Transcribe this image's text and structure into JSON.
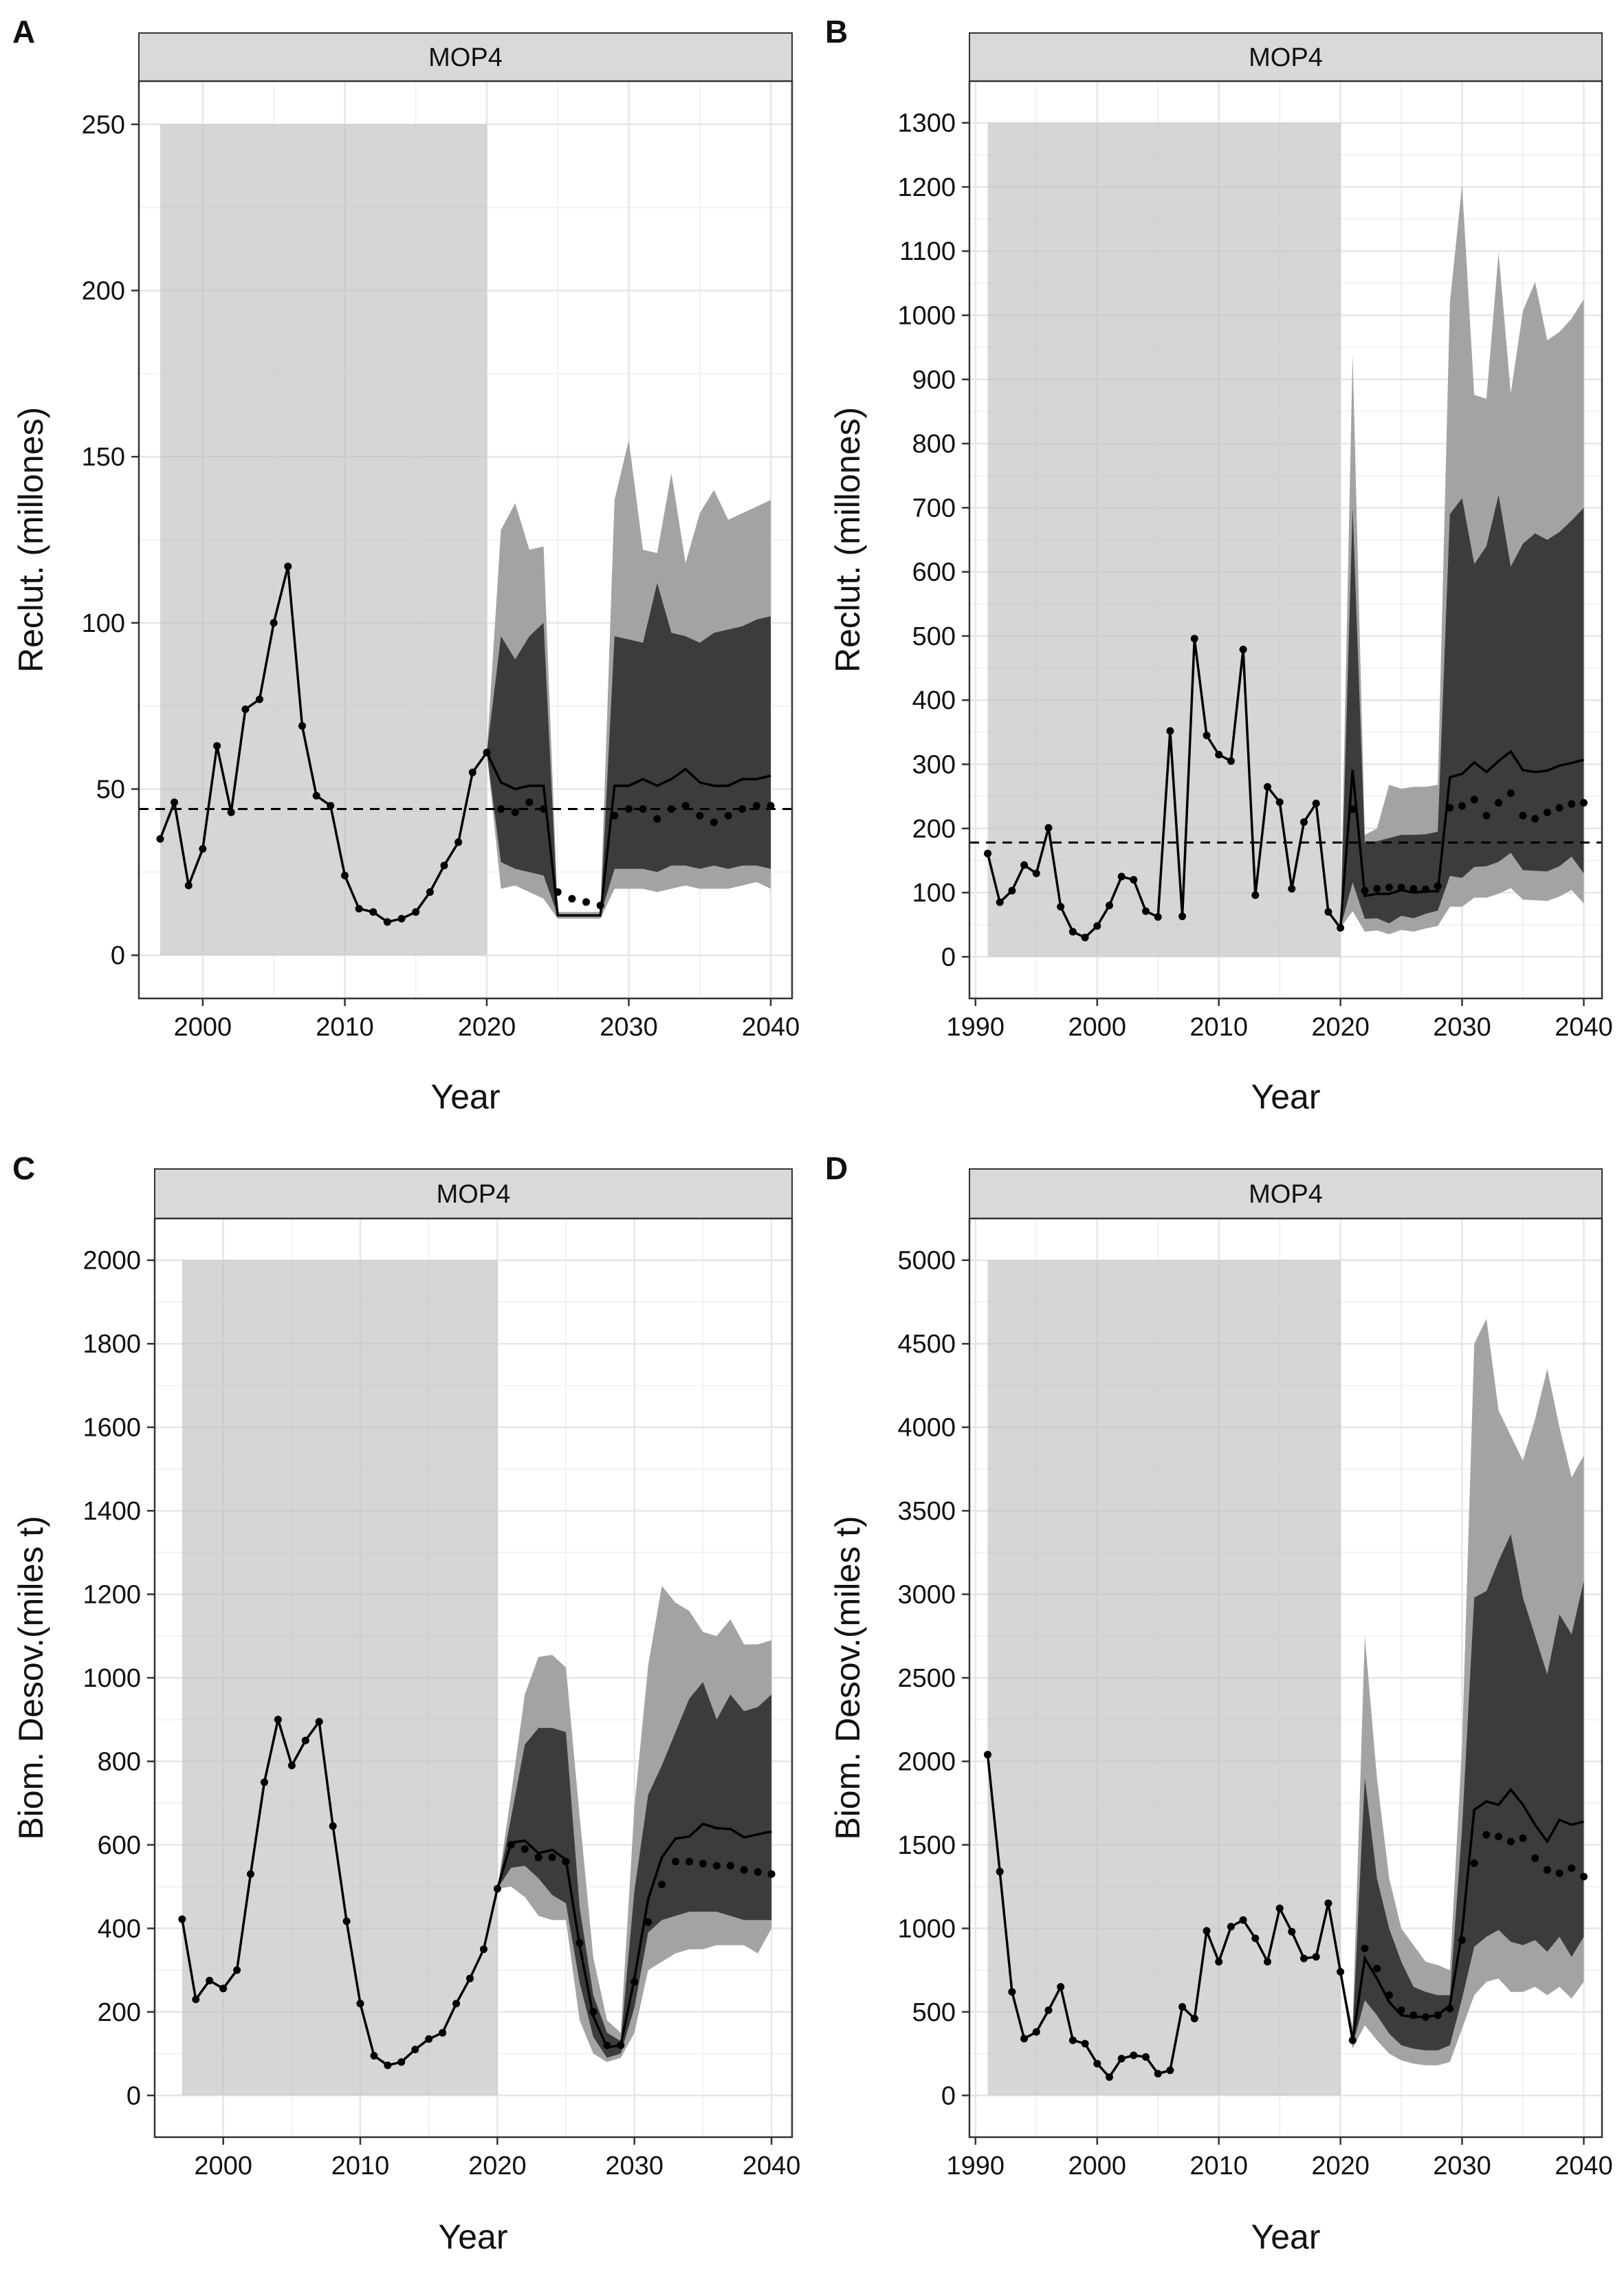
{
  "chart_data": [
    {
      "panel_letter": "A",
      "strip": "MOP4",
      "type": "line",
      "xlabel": "Year",
      "ylabel": "Reclut. (millones)",
      "xlim": [
        1995.5,
        2041.5
      ],
      "ylim": [
        -13,
        263
      ],
      "xticks": [
        2000,
        2010,
        2020,
        2030,
        2040
      ],
      "yticks": [
        0,
        50,
        100,
        150,
        200,
        250
      ],
      "hist_region": [
        1997,
        2020
      ],
      "hist_region_ymax": 250,
      "reference_line": 44,
      "observed": {
        "x": [
          1997,
          1998,
          1999,
          2000,
          2001,
          2002,
          2003,
          2004,
          2005,
          2006,
          2007,
          2008,
          2009,
          2010,
          2011,
          2012,
          2013,
          2014,
          2015,
          2016,
          2017,
          2018,
          2019,
          2020
        ],
        "y": [
          35,
          46,
          21,
          32,
          63,
          43,
          74,
          77,
          100,
          117,
          69,
          48,
          45,
          24,
          14,
          13,
          10,
          11,
          13,
          19,
          27,
          34,
          55,
          61
        ]
      },
      "proj_x": [
        2020,
        2021,
        2022,
        2023,
        2024,
        2025,
        2026,
        2027,
        2028,
        2029,
        2030,
        2031,
        2032,
        2033,
        2034,
        2035,
        2036,
        2037,
        2038,
        2039,
        2040
      ],
      "proj_median": [
        61,
        52,
        50,
        51,
        51,
        12,
        12,
        12,
        12,
        51,
        51,
        53,
        51,
        53,
        56,
        52,
        51,
        51,
        53,
        53,
        54
      ],
      "proj_mean": [
        61,
        44,
        43,
        46,
        44,
        19,
        17,
        16,
        15,
        42,
        44,
        44,
        41,
        44,
        45,
        42,
        40,
        42,
        44,
        45,
        45
      ],
      "band_outer": {
        "lo": [
          61,
          20,
          21,
          19,
          17,
          11,
          11,
          11,
          11,
          20,
          20,
          20,
          19,
          20,
          21,
          20,
          20,
          20,
          21,
          22,
          20
        ],
        "hi": [
          61,
          128,
          136,
          122,
          123,
          13,
          13,
          13,
          13,
          137,
          155,
          122,
          121,
          145,
          118,
          133,
          140,
          131,
          133,
          135,
          137
        ]
      },
      "band_inner": {
        "lo": [
          61,
          28,
          26,
          25,
          24,
          12,
          12,
          12,
          12,
          26,
          26,
          26,
          25,
          27,
          27,
          26,
          27,
          26,
          27,
          27,
          26
        ],
        "hi": [
          61,
          96,
          89,
          96,
          100,
          12,
          12,
          12,
          12,
          96,
          95,
          94,
          112,
          97,
          96,
          94,
          97,
          98,
          99,
          101,
          102
        ]
      }
    },
    {
      "panel_letter": "B",
      "strip": "MOP4",
      "type": "line",
      "xlabel": "Year",
      "ylabel": "Reclut. (millones)",
      "xlim": [
        1989.5,
        2041.5
      ],
      "ylim": [
        -65,
        1365
      ],
      "xticks": [
        1990,
        2000,
        2010,
        2020,
        2030,
        2040
      ],
      "yticks": [
        0,
        100,
        200,
        300,
        400,
        500,
        600,
        700,
        800,
        900,
        1000,
        1100,
        1200,
        1300
      ],
      "hist_region": [
        1991,
        2020
      ],
      "hist_region_ymax": 1300,
      "reference_line": 178,
      "observed": {
        "x": [
          1991,
          1992,
          1993,
          1994,
          1995,
          1996,
          1997,
          1998,
          1999,
          2000,
          2001,
          2002,
          2003,
          2004,
          2005,
          2006,
          2007,
          2008,
          2009,
          2010,
          2011,
          2012,
          2013,
          2014,
          2015,
          2016,
          2017,
          2018,
          2019,
          2020
        ],
        "y": [
          161,
          85,
          103,
          143,
          130,
          201,
          78,
          39,
          30,
          48,
          80,
          125,
          120,
          71,
          62,
          352,
          63,
          496,
          345,
          315,
          305,
          479,
          96,
          265,
          241,
          106,
          210,
          239,
          70,
          45
        ]
      },
      "proj_x": [
        2020,
        2021,
        2022,
        2023,
        2024,
        2025,
        2026,
        2027,
        2028,
        2029,
        2030,
        2031,
        2032,
        2033,
        2034,
        2035,
        2036,
        2037,
        2038,
        2039,
        2040
      ],
      "proj_median": [
        45,
        291,
        95,
        98,
        98,
        104,
        100,
        102,
        102,
        280,
        285,
        303,
        288,
        305,
        320,
        291,
        288,
        290,
        298,
        302,
        307
      ],
      "proj_mean": [
        45,
        230,
        103,
        106,
        108,
        108,
        106,
        105,
        110,
        232,
        235,
        245,
        220,
        240,
        255,
        220,
        215,
        225,
        232,
        238,
        240
      ],
      "band_outer": {
        "lo": [
          45,
          71,
          39,
          41,
          35,
          42,
          39,
          44,
          48,
          78,
          78,
          92,
          92,
          98,
          107,
          89,
          88,
          87,
          94,
          104,
          83
        ],
        "hi": [
          45,
          940,
          190,
          200,
          268,
          262,
          265,
          265,
          268,
          1020,
          1203,
          876,
          870,
          1098,
          878,
          1007,
          1052,
          961,
          974,
          995,
          1025
        ]
      },
      "band_inner": {
        "lo": [
          45,
          116,
          59,
          60,
          52,
          64,
          60,
          67,
          72,
          126,
          123,
          140,
          141,
          148,
          162,
          135,
          134,
          133,
          141,
          156,
          130
        ],
        "hi": [
          45,
          700,
          177,
          180,
          185,
          190,
          190,
          191,
          195,
          690,
          715,
          612,
          640,
          720,
          608,
          644,
          660,
          650,
          662,
          680,
          700
        ]
      }
    },
    {
      "panel_letter": "C",
      "strip": "MOP4",
      "type": "line",
      "xlabel": "Year",
      "ylabel": "Biom. Desov.(miles t)",
      "xlim": [
        1995,
        2041.5
      ],
      "ylim": [
        -100,
        2100
      ],
      "xticks": [
        2000,
        2010,
        2020,
        2030,
        2040
      ],
      "yticks": [
        0,
        200,
        400,
        600,
        800,
        1000,
        1200,
        1400,
        1600,
        1800,
        2000
      ],
      "hist_region": [
        1997,
        2020
      ],
      "hist_region_ymax": 2000,
      "observed": {
        "x": [
          1997,
          1998,
          1999,
          2000,
          2001,
          2002,
          2003,
          2004,
          2005,
          2006,
          2007,
          2008,
          2009,
          2010,
          2011,
          2012,
          2013,
          2014,
          2015,
          2016,
          2017,
          2018,
          2019,
          2020
        ],
        "y": [
          422,
          230,
          275,
          256,
          300,
          530,
          750,
          900,
          790,
          850,
          895,
          645,
          417,
          220,
          95,
          72,
          80,
          110,
          135,
          150,
          220,
          280,
          350,
          495
        ]
      },
      "proj_x": [
        2020,
        2021,
        2022,
        2023,
        2024,
        2025,
        2026,
        2027,
        2028,
        2029,
        2030,
        2031,
        2032,
        2033,
        2034,
        2035,
        2036,
        2037,
        2038,
        2039,
        2040
      ],
      "proj_median": [
        495,
        605,
        610,
        580,
        588,
        565,
        360,
        190,
        115,
        120,
        280,
        470,
        570,
        615,
        620,
        650,
        640,
        638,
        618,
        625,
        632
      ],
      "proj_mean": [
        495,
        600,
        590,
        570,
        570,
        560,
        365,
        200,
        120,
        120,
        272,
        415,
        505,
        560,
        560,
        555,
        550,
        550,
        540,
        535,
        530
      ],
      "band_outer": {
        "lo": [
          495,
          500,
          475,
          430,
          420,
          420,
          180,
          100,
          80,
          90,
          150,
          300,
          320,
          340,
          350,
          350,
          360,
          360,
          360,
          340,
          400
        ],
        "hi": [
          495,
          720,
          960,
          1050,
          1055,
          1025,
          670,
          330,
          180,
          150,
          690,
          1030,
          1220,
          1180,
          1160,
          1110,
          1100,
          1140,
          1080,
          1080,
          1090
        ]
      },
      "band_inner": {
        "lo": [
          495,
          545,
          550,
          520,
          480,
          460,
          270,
          140,
          90,
          100,
          210,
          390,
          420,
          430,
          440,
          440,
          440,
          430,
          420,
          420,
          420
        ],
        "hi": [
          495,
          665,
          840,
          880,
          880,
          870,
          450,
          240,
          150,
          130,
          490,
          720,
          790,
          870,
          950,
          990,
          900,
          960,
          920,
          930,
          960
        ]
      }
    },
    {
      "panel_letter": "D",
      "strip": "MOP4",
      "type": "line",
      "xlabel": "Year",
      "ylabel": "Biom. Desov.(miles t)",
      "xlim": [
        1989.5,
        2041.5
      ],
      "ylim": [
        -250,
        5250
      ],
      "xticks": [
        1990,
        2000,
        2010,
        2020,
        2030,
        2040
      ],
      "yticks": [
        0,
        500,
        1000,
        1500,
        2000,
        2500,
        3000,
        3500,
        4000,
        4500,
        5000
      ],
      "hist_region": [
        1991,
        2020
      ],
      "hist_region_ymax": 5000,
      "observed": {
        "x": [
          1991,
          1992,
          1993,
          1994,
          1995,
          1996,
          1997,
          1998,
          1999,
          2000,
          2001,
          2002,
          2003,
          2004,
          2005,
          2006,
          2007,
          2008,
          2009,
          2010,
          2011,
          2012,
          2013,
          2014,
          2015,
          2016,
          2017,
          2018,
          2019,
          2020
        ],
        "y": [
          2040,
          1340,
          620,
          340,
          380,
          510,
          650,
          330,
          310,
          190,
          110,
          220,
          240,
          230,
          130,
          150,
          530,
          460,
          985,
          800,
          1010,
          1050,
          940,
          800,
          1120,
          980,
          820,
          830,
          1150,
          740
        ]
      },
      "proj_x": [
        2020,
        2021,
        2022,
        2023,
        2024,
        2025,
        2026,
        2027,
        2028,
        2029,
        2030,
        2031,
        2032,
        2033,
        2034,
        2035,
        2036,
        2037,
        2038,
        2039,
        2040
      ],
      "proj_median": [
        740,
        330,
        820,
        700,
        560,
        480,
        470,
        470,
        480,
        540,
        980,
        1710,
        1760,
        1740,
        1830,
        1740,
        1620,
        1520,
        1650,
        1620,
        1640
      ],
      "proj_mean": [
        740,
        330,
        880,
        760,
        600,
        510,
        480,
        470,
        480,
        520,
        930,
        1390,
        1560,
        1550,
        1520,
        1540,
        1420,
        1350,
        1330,
        1360,
        1310
      ],
      "band_outer": {
        "lo": [
          740,
          280,
          420,
          330,
          250,
          210,
          190,
          180,
          180,
          200,
          400,
          600,
          680,
          700,
          620,
          620,
          650,
          600,
          650,
          580,
          680
        ],
        "hi": [
          740,
          410,
          2750,
          1900,
          1300,
          1000,
          900,
          800,
          780,
          750,
          2100,
          4500,
          4650,
          4100,
          3950,
          3800,
          4050,
          4350,
          4000,
          3700,
          3830
        ]
      },
      "band_inner": {
        "lo": [
          740,
          300,
          570,
          480,
          370,
          300,
          280,
          270,
          270,
          300,
          580,
          890,
          950,
          990,
          920,
          900,
          930,
          860,
          950,
          830,
          950
        ],
        "hi": [
          740,
          380,
          1900,
          1300,
          1000,
          800,
          650,
          620,
          600,
          600,
          1600,
          2980,
          3020,
          3200,
          3360,
          2980,
          2750,
          2520,
          2880,
          2760,
          3080
        ]
      }
    }
  ]
}
